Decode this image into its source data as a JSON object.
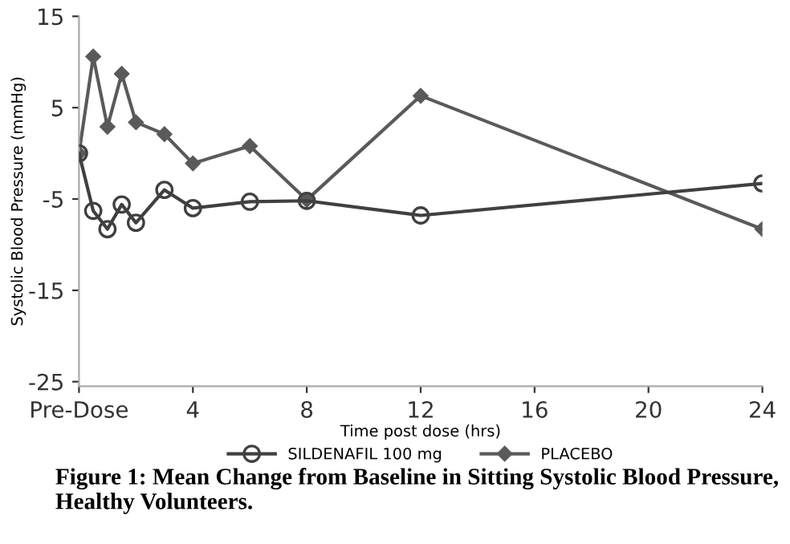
{
  "chart_data": {
    "type": "line",
    "xlabel": "Time post dose (hrs)",
    "ylabel": "Systolic Blood Pressure (mmHg)",
    "xlim": [
      0,
      24
    ],
    "xticks": [
      {
        "value": 0,
        "label": "Pre-Dose"
      },
      4,
      8,
      12,
      16,
      20,
      24
    ],
    "ylim": [
      -25.5,
      15
    ],
    "yticks": [
      -25,
      -15,
      -5,
      5,
      15
    ],
    "grid": false,
    "legend": "bottom",
    "annotations": [
      "Figure 1: Mean Change from Baseline in Sitting Systolic Blood Pressure, Healthy Volunteers."
    ],
    "series": [
      {
        "name": "SILDENAFIL 100 mg",
        "color": "#404040",
        "marker": "circle",
        "x": [
          0,
          0.5,
          1,
          1.5,
          2,
          3,
          4,
          6,
          8,
          12,
          24
        ],
        "values": [
          0,
          -6.3,
          -8.3,
          -5.6,
          -7.6,
          -4.0,
          -6.0,
          -5.3,
          -5.2,
          -6.8,
          -3.3
        ]
      },
      {
        "name": "PLACEBO",
        "color": "#5a5a5a",
        "marker": "diamond",
        "x": [
          0,
          0.5,
          1,
          1.5,
          2,
          3,
          4,
          6,
          8,
          12,
          24
        ],
        "values": [
          0,
          10.6,
          2.9,
          8.7,
          3.4,
          2.1,
          -1.1,
          0.8,
          -5.1,
          6.3,
          -8.3
        ]
      }
    ]
  }
}
